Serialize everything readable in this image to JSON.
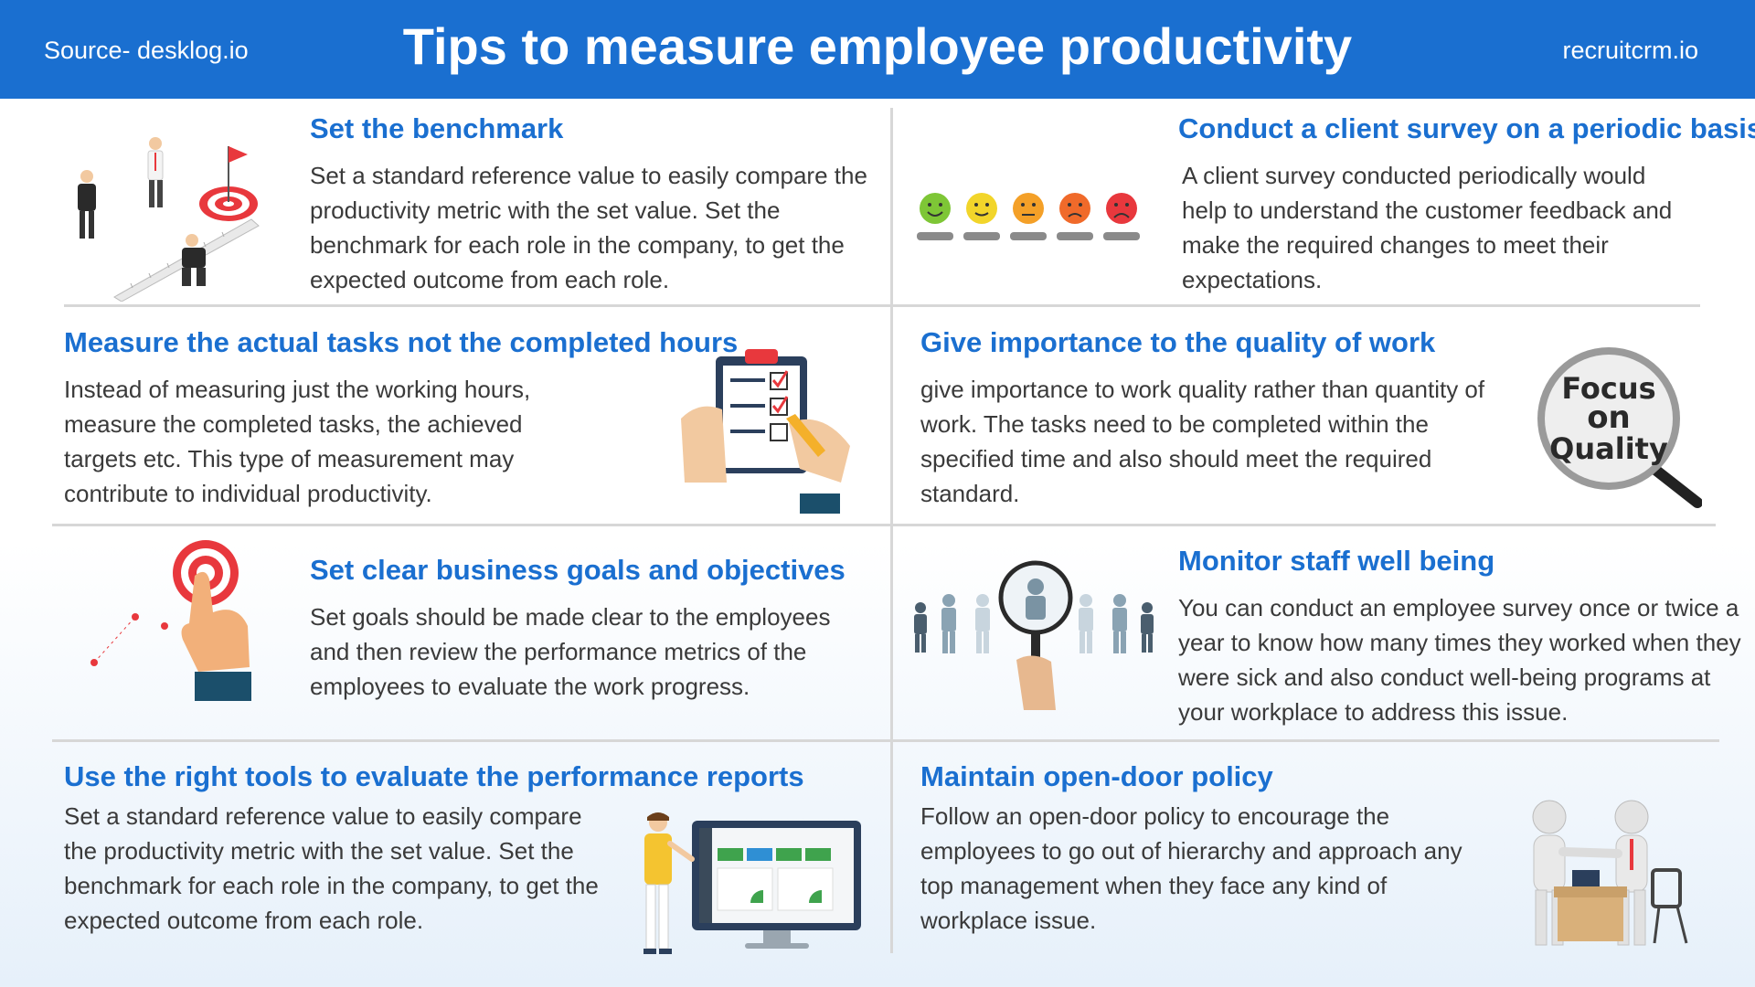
{
  "header": {
    "source": "Source- desklog.io",
    "title": "Tips to measure employee productivity",
    "brand": "recruitcrm.io"
  },
  "colors": {
    "accent": "#1a6fd0",
    "divider": "#d7d7d7",
    "target_red": "#e8383d"
  },
  "tips": {
    "benchmark": {
      "title": "Set the benchmark",
      "body": "Set a standard reference value to easily compare the productivity metric with the set value. Set the benchmark for each role in the company, to get the expected outcome from each role."
    },
    "survey": {
      "title": "Conduct a client survey on a periodic basis",
      "body": "A client survey conducted periodically would help to understand the customer feedback and make the required changes to meet their expectations."
    },
    "tasks": {
      "title": "Measure the actual tasks not the completed hours",
      "body": "Instead of measuring just the working hours, measure the completed tasks, the achieved targets etc. This type of measurement may contribute to individual productivity."
    },
    "quality": {
      "title": "Give importance to the quality of work",
      "body": "give importance to work quality rather than quantity of work. The tasks need to be completed within the specified time and also should meet the required standard.",
      "badge": {
        "line1": "Focus",
        "line2": "on",
        "line3": "Quality"
      }
    },
    "goals": {
      "title": "Set clear business goals and objectives",
      "body": "Set goals should be made clear to the employees and then review the performance metrics of the employees to evaluate the work progress."
    },
    "wellbeing": {
      "title": "Monitor staff well being",
      "body": "You can conduct an employee survey once or twice a year to know how many times they worked when they were sick and also conduct well-being programs at your workplace to address this issue."
    },
    "tools": {
      "title": "Use the right tools to evaluate the performance reports",
      "body": "Set a standard reference value to easily compare the productivity metric with the set value. Set the benchmark for each role in the company, to get the expected outcome from each role."
    },
    "opendoor": {
      "title": "Maintain open-door policy",
      "body": "Follow an open-door policy to encourage the employees to go out of hierarchy and approach any top management when they face any kind of workplace issue."
    }
  },
  "icons": [
    "benchmark-illustration",
    "rating-faces-icon",
    "checklist-icon",
    "focus-magnifier-icon",
    "target-hand-icon",
    "people-magnifier-icon",
    "dashboard-monitor-icon",
    "handshake-figures-icon"
  ]
}
